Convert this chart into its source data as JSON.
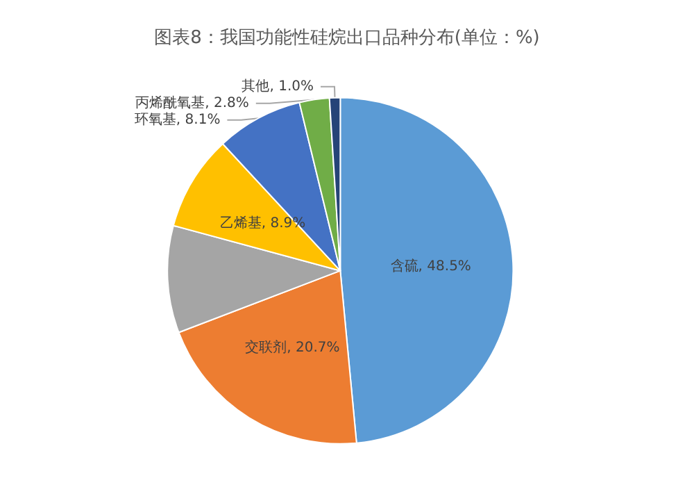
{
  "chart_data": {
    "type": "pie",
    "title": "图表8：我国功能性硅烷出口品种分布(单位：%)",
    "categories": [
      "含硫",
      "交联剂",
      null,
      "乙烯基",
      "环氧基",
      "丙烯酰氧基",
      "其他"
    ],
    "values": [
      48.5,
      20.7,
      10.0,
      8.9,
      8.1,
      2.8,
      1.0
    ],
    "value_labels": [
      "48.5%",
      "20.7%",
      null,
      "8.9%",
      "8.1%",
      "2.8%",
      "1.0%"
    ],
    "colors": [
      "#5b9bd5",
      "#ed7d31",
      "#a5a5a5",
      "#ffc000",
      "#4472c4",
      "#70ad47",
      "#264478"
    ],
    "legend": false
  }
}
